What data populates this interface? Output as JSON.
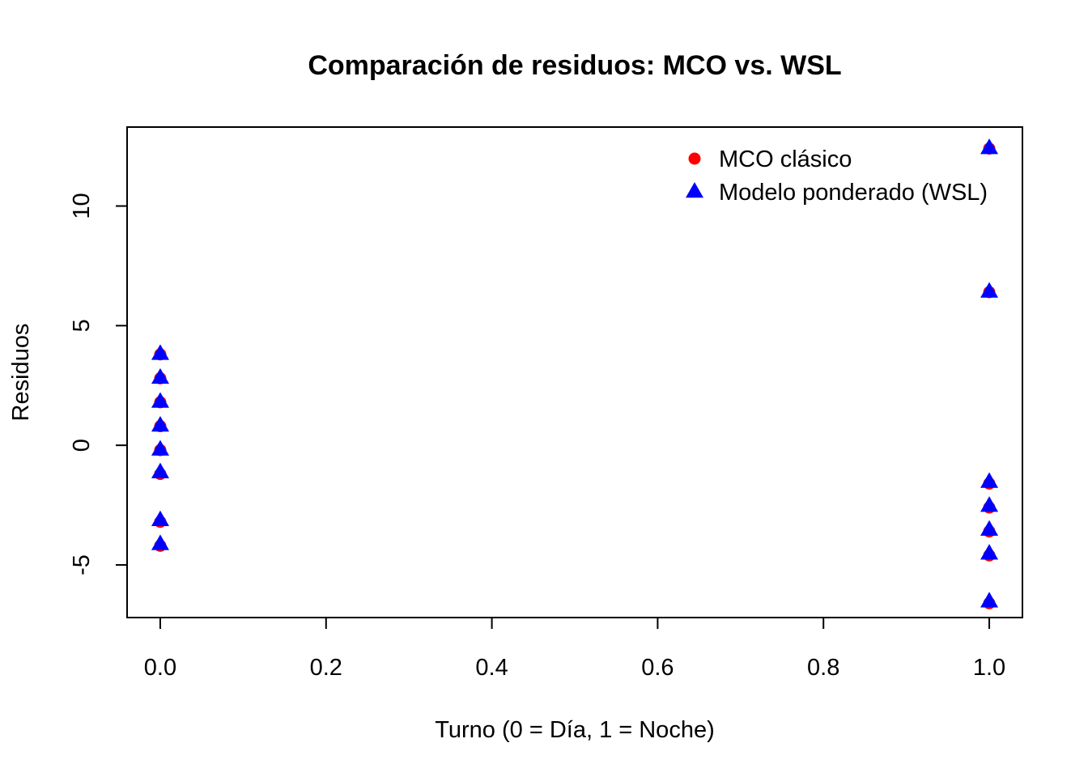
{
  "chart_data": {
    "type": "scatter",
    "title": "Comparación de residuos: MCO vs. WSL",
    "xlabel": "Turno (0 = Día, 1 = Noche)",
    "ylabel": "Residuos",
    "xlim": [
      -0.04,
      1.04
    ],
    "ylim": [
      -7.2,
      13.3
    ],
    "x_ticks": [
      0.0,
      0.2,
      0.4,
      0.6,
      0.8,
      1.0
    ],
    "x_tick_labels": [
      "0.0",
      "0.2",
      "0.4",
      "0.6",
      "0.8",
      "1.0"
    ],
    "y_ticks": [
      -5,
      0,
      5,
      10
    ],
    "y_tick_labels": [
      "-5",
      "0",
      "5",
      "10"
    ],
    "grid": false,
    "legend_position": "top-right",
    "series": [
      {
        "name": "MCO clásico",
        "marker": "circle",
        "color": "#FF0000",
        "x": [
          0,
          0,
          0,
          0,
          0,
          0,
          0,
          0,
          1,
          1,
          1,
          1,
          1,
          1,
          1
        ],
        "y": [
          3.8,
          2.8,
          1.8,
          0.8,
          -0.2,
          -1.2,
          -3.2,
          -4.2,
          12.4,
          6.4,
          -1.6,
          -2.6,
          -3.6,
          -4.6,
          -6.6
        ]
      },
      {
        "name": "Modelo ponderado (WSL)",
        "marker": "triangle",
        "color": "#0000FF",
        "x": [
          0,
          0,
          0,
          0,
          0,
          0,
          0,
          0,
          1,
          1,
          1,
          1,
          1,
          1,
          1
        ],
        "y": [
          3.85,
          2.85,
          1.85,
          0.85,
          -0.15,
          -1.1,
          -3.1,
          -4.1,
          12.45,
          6.45,
          -1.5,
          -2.5,
          -3.5,
          -4.5,
          -6.5
        ]
      }
    ]
  }
}
